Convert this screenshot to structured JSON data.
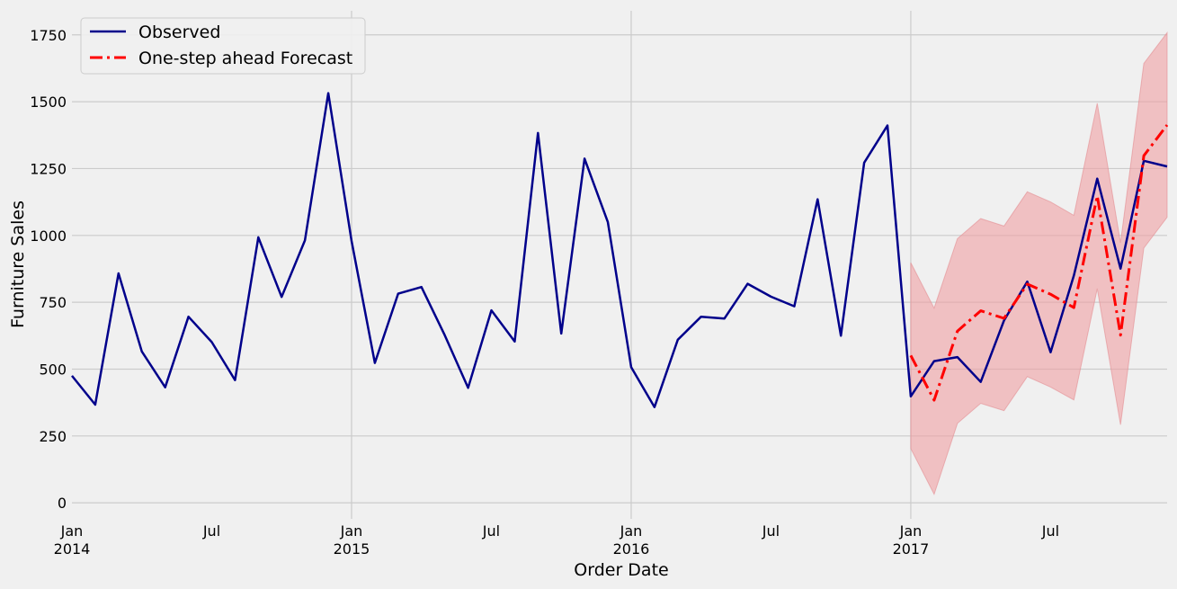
{
  "chart_data": {
    "type": "line",
    "xlabel": "Order Date",
    "ylabel": "Furniture Sales",
    "xlim": [
      "2014-01",
      "2017-12"
    ],
    "ylim": [
      -60,
      1840
    ],
    "grid": true,
    "legend_position": "top-left",
    "y_ticks": [
      0,
      250,
      500,
      750,
      1000,
      1250,
      1500,
      1750
    ],
    "x_ticks": [
      {
        "date": "2014-01",
        "label": "Jan",
        "year": "2014"
      },
      {
        "date": "2014-07",
        "label": "Jul",
        "year": ""
      },
      {
        "date": "2015-01",
        "label": "Jan",
        "year": "2015"
      },
      {
        "date": "2015-07",
        "label": "Jul",
        "year": ""
      },
      {
        "date": "2016-01",
        "label": "Jan",
        "year": "2016"
      },
      {
        "date": "2016-07",
        "label": "Jul",
        "year": ""
      },
      {
        "date": "2017-01",
        "label": "Jan",
        "year": "2017"
      },
      {
        "date": "2017-07",
        "label": "Jul",
        "year": ""
      }
    ],
    "series": [
      {
        "name": "Observed",
        "color": "#00008b",
        "style": "solid",
        "x": [
          "2014-01",
          "2014-02",
          "2014-03",
          "2014-04",
          "2014-05",
          "2014-06",
          "2014-07",
          "2014-08",
          "2014-09",
          "2014-10",
          "2014-11",
          "2014-12",
          "2015-01",
          "2015-02",
          "2015-03",
          "2015-04",
          "2015-05",
          "2015-06",
          "2015-07",
          "2015-08",
          "2015-09",
          "2015-10",
          "2015-11",
          "2015-12",
          "2016-01",
          "2016-02",
          "2016-03",
          "2016-04",
          "2016-05",
          "2016-06",
          "2016-07",
          "2016-08",
          "2016-09",
          "2016-10",
          "2016-11",
          "2016-12",
          "2017-01",
          "2017-02",
          "2017-03",
          "2017-04",
          "2017-05",
          "2017-06",
          "2017-07",
          "2017-08",
          "2017-09",
          "2017-10",
          "2017-11",
          "2017-12"
        ],
        "values": [
          475,
          367,
          858,
          566,
          432,
          696,
          601,
          459,
          993,
          770,
          981,
          1532,
          979,
          523,
          782,
          807,
          627,
          430,
          720,
          603,
          1383,
          633,
          1287,
          1050,
          507,
          358,
          610,
          696,
          689,
          819,
          771,
          735,
          1135,
          625,
          1272,
          1411,
          398,
          530,
          545,
          452,
          682,
          827,
          563,
          850,
          1212,
          876,
          1279,
          1258
        ]
      },
      {
        "name": "One-step ahead Forecast",
        "color": "#ff0000",
        "style": "dashdot",
        "x": [
          "2017-01",
          "2017-02",
          "2017-03",
          "2017-04",
          "2017-05",
          "2017-06",
          "2017-07",
          "2017-08",
          "2017-09",
          "2017-10",
          "2017-11",
          "2017-12"
        ],
        "values": [
          551,
          384,
          642,
          718,
          690,
          818,
          780,
          730,
          1148,
          627,
          1298,
          1413
        ],
        "lower": [
          203,
          32,
          297,
          372,
          345,
          472,
          433,
          385,
          801,
          292,
          953,
          1068
        ],
        "upper": [
          898,
          728,
          988,
          1063,
          1035,
          1163,
          1125,
          1075,
          1494,
          972,
          1643,
          1758
        ],
        "band_color": "#f0a0a4"
      }
    ]
  }
}
